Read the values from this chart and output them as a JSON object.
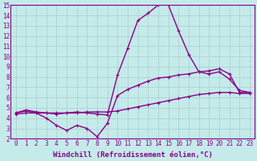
{
  "xlabel": "Windchill (Refroidissement éolien,°C)",
  "xlim": [
    -0.5,
    23.5
  ],
  "ylim": [
    2,
    15
  ],
  "xticks": [
    0,
    1,
    2,
    3,
    4,
    5,
    6,
    7,
    8,
    9,
    10,
    11,
    12,
    13,
    14,
    15,
    16,
    17,
    18,
    19,
    20,
    21,
    22,
    23
  ],
  "yticks": [
    2,
    3,
    4,
    5,
    6,
    7,
    8,
    9,
    10,
    11,
    12,
    13,
    14,
    15
  ],
  "background_color": "#c5eaea",
  "grid_color": "#aacece",
  "line_color": "#880088",
  "line1_x": [
    0,
    1,
    2,
    3,
    4,
    5,
    6,
    7,
    8,
    9,
    10,
    11,
    12,
    13,
    14,
    15,
    16,
    17,
    18,
    19,
    20,
    21,
    22,
    23
  ],
  "line1_y": [
    4.5,
    4.8,
    4.6,
    4.5,
    4.4,
    4.5,
    4.6,
    4.5,
    4.4,
    4.3,
    8.2,
    10.8,
    13.5,
    14.2,
    15.0,
    15.0,
    12.5,
    10.2,
    8.5,
    8.3,
    8.5,
    7.8,
    6.7,
    6.5
  ],
  "line2_x": [
    0,
    1,
    2,
    3,
    4,
    5,
    6,
    7,
    8,
    9,
    10,
    11,
    12,
    13,
    14,
    15,
    16,
    17,
    18,
    19,
    20,
    21,
    22,
    23
  ],
  "line2_y": [
    4.5,
    4.7,
    4.5,
    4.0,
    3.3,
    2.8,
    3.3,
    3.0,
    2.2,
    3.5,
    6.2,
    6.8,
    7.2,
    7.6,
    7.9,
    8.0,
    8.2,
    8.3,
    8.5,
    8.6,
    8.8,
    8.3,
    6.5,
    6.5
  ],
  "line3_x": [
    0,
    1,
    2,
    3,
    4,
    5,
    6,
    7,
    8,
    9,
    10,
    11,
    12,
    13,
    14,
    15,
    16,
    17,
    18,
    19,
    20,
    21,
    22,
    23
  ],
  "line3_y": [
    4.4,
    4.5,
    4.5,
    4.5,
    4.5,
    4.5,
    4.5,
    4.6,
    4.6,
    4.6,
    4.7,
    4.9,
    5.1,
    5.3,
    5.5,
    5.7,
    5.9,
    6.1,
    6.3,
    6.4,
    6.5,
    6.5,
    6.4,
    6.4
  ],
  "marker": "+",
  "markersize": 3,
  "linewidth": 1.0,
  "tick_fontsize": 5.5,
  "xlabel_fontsize": 6.5
}
